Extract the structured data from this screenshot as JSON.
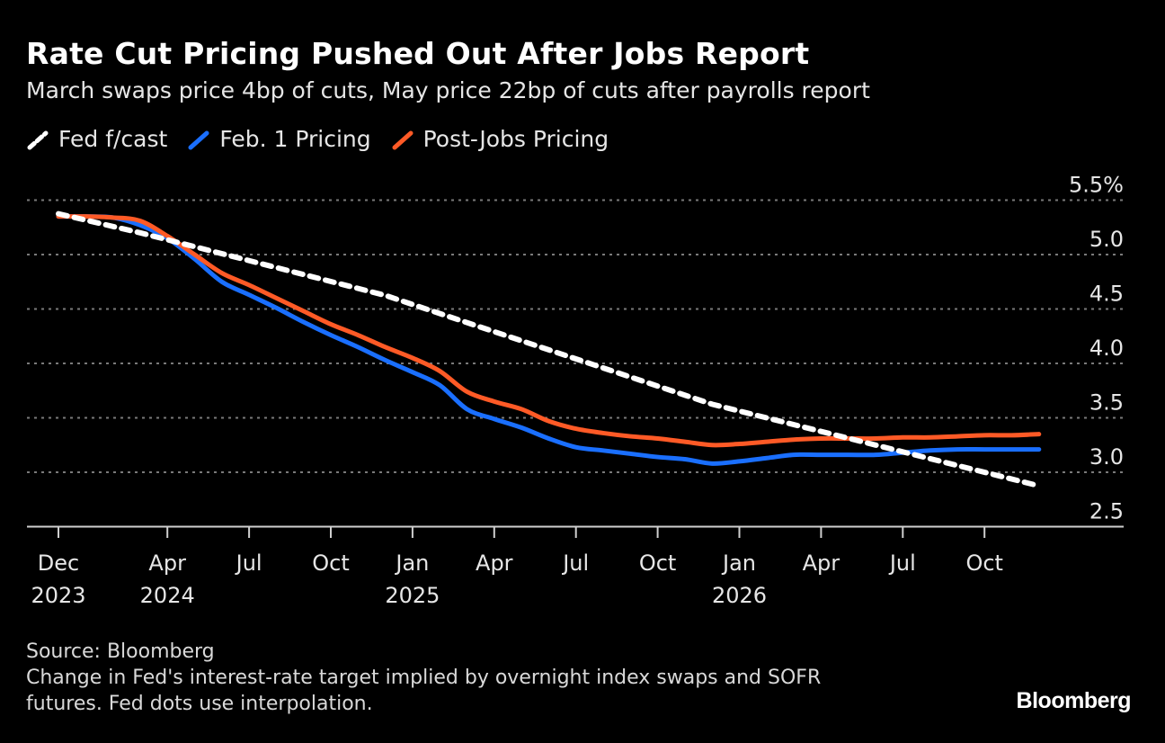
{
  "chart_data": {
    "type": "line",
    "title": "Rate Cut Pricing Pushed Out After Jobs Report",
    "subtitle": "March swaps price 4bp of cuts, May price 22bp of cuts after payrolls report",
    "ylim": [
      2.5,
      5.5
    ],
    "y_ticks": [
      "5.5%",
      "5.0",
      "4.5",
      "4.0",
      "3.5",
      "3.0",
      "2.5"
    ],
    "y_tick_values": [
      5.5,
      5.0,
      4.5,
      4.0,
      3.5,
      3.0,
      2.5
    ],
    "y_axis_side": "right",
    "grid": true,
    "legend_placement": "top-left",
    "x_ticks": [
      {
        "month": "2023-12",
        "label": "Dec",
        "year": "2023"
      },
      {
        "month": "2024-04",
        "label": "Apr",
        "year": "2024"
      },
      {
        "month": "2024-07",
        "label": "Jul",
        "year": ""
      },
      {
        "month": "2024-10",
        "label": "Oct",
        "year": ""
      },
      {
        "month": "2025-01",
        "label": "Jan",
        "year": "2025"
      },
      {
        "month": "2025-04",
        "label": "Apr",
        "year": ""
      },
      {
        "month": "2025-07",
        "label": "Jul",
        "year": ""
      },
      {
        "month": "2025-10",
        "label": "Oct",
        "year": ""
      },
      {
        "month": "2026-01",
        "label": "Jan",
        "year": "2026"
      },
      {
        "month": "2026-04",
        "label": "Apr",
        "year": ""
      },
      {
        "month": "2026-07",
        "label": "Jul",
        "year": ""
      },
      {
        "month": "2026-10",
        "label": "Oct",
        "year": ""
      }
    ],
    "x_start": "2023-12",
    "x": [
      "2023-12",
      "2024-01",
      "2024-02",
      "2024-03",
      "2024-04",
      "2024-05",
      "2024-06",
      "2024-07",
      "2024-08",
      "2024-09",
      "2024-10",
      "2024-11",
      "2024-12",
      "2025-01",
      "2025-02",
      "2025-03",
      "2025-04",
      "2025-05",
      "2025-06",
      "2025-07",
      "2025-08",
      "2025-09",
      "2025-10",
      "2025-11",
      "2025-12",
      "2026-01",
      "2026-02",
      "2026-03",
      "2026-04",
      "2026-05",
      "2026-06",
      "2026-07",
      "2026-08",
      "2026-09",
      "2026-10",
      "2026-11",
      "2026-12"
    ],
    "series": [
      {
        "name": "Fed f/cast",
        "color": "#ffffff",
        "style": "dashed",
        "x": [
          "2023-12",
          "2024-03",
          "2024-12",
          "2025-12",
          "2026-12"
        ],
        "values": [
          5.375,
          5.2,
          4.625,
          3.625,
          2.875
        ]
      },
      {
        "name": "Feb. 1 Pricing",
        "color": "#1a6fff",
        "style": "solid",
        "values": [
          5.35,
          5.35,
          5.34,
          5.27,
          5.15,
          4.96,
          4.75,
          4.63,
          4.51,
          4.38,
          4.26,
          4.15,
          4.03,
          3.92,
          3.8,
          3.58,
          3.49,
          3.41,
          3.31,
          3.23,
          3.2,
          3.17,
          3.14,
          3.12,
          3.08,
          3.1,
          3.13,
          3.16,
          3.16,
          3.16,
          3.16,
          3.18,
          3.2,
          3.21,
          3.21,
          3.21,
          3.21
        ]
      },
      {
        "name": "Post-Jobs Pricing",
        "color": "#ff5a26",
        "style": "solid",
        "values": [
          5.35,
          5.35,
          5.34,
          5.31,
          5.17,
          5.0,
          4.83,
          4.72,
          4.6,
          4.48,
          4.36,
          4.26,
          4.15,
          4.05,
          3.93,
          3.74,
          3.65,
          3.58,
          3.47,
          3.4,
          3.36,
          3.33,
          3.31,
          3.28,
          3.25,
          3.26,
          3.28,
          3.3,
          3.31,
          3.31,
          3.31,
          3.32,
          3.32,
          3.33,
          3.34,
          3.34,
          3.35
        ]
      }
    ]
  },
  "footer": {
    "source": "Source: Bloomberg",
    "note_line1": "Change in Fed's interest-rate target implied by overnight index swaps and SOFR",
    "note_line2": "futures. Fed dots use interpolation.",
    "logo": "Bloomberg"
  }
}
